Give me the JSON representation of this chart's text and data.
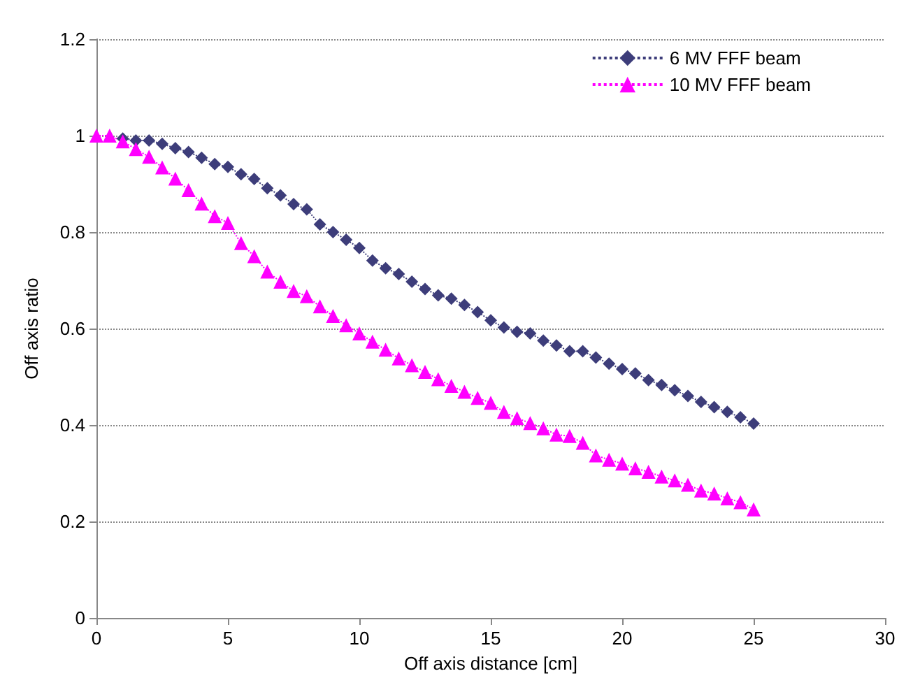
{
  "chart_data": {
    "type": "line",
    "xlabel": "Off axis distance [cm]",
    "ylabel": "Off axis ratio",
    "x": [
      0,
      0.5,
      1,
      1.5,
      2,
      2.5,
      3,
      3.5,
      4,
      4.5,
      5,
      5.5,
      6,
      6.5,
      7,
      7.5,
      8,
      8.5,
      9,
      9.5,
      10,
      10.5,
      11,
      11.5,
      12,
      12.5,
      13,
      13.5,
      14,
      14.5,
      15,
      15.5,
      16,
      16.5,
      17,
      17.5,
      18,
      18.5,
      19,
      19.5,
      20,
      20.5,
      21,
      21.5,
      22,
      22.5,
      23,
      23.5,
      24,
      24.5,
      25
    ],
    "series": [
      {
        "name": "6 MV FFF beam",
        "color": "#3d3d7a",
        "marker": "diamond",
        "values": [
          null,
          null,
          0.994,
          0.99,
          0.99,
          0.983,
          0.974,
          0.966,
          0.954,
          0.941,
          0.935,
          0.92,
          0.91,
          0.891,
          0.876,
          0.858,
          0.847,
          0.816,
          0.8,
          0.784,
          0.767,
          0.741,
          0.725,
          0.713,
          0.697,
          0.682,
          0.669,
          0.662,
          0.649,
          0.634,
          0.617,
          0.602,
          0.593,
          0.59,
          0.575,
          0.565,
          0.553,
          0.553,
          0.54,
          0.527,
          0.516,
          0.507,
          0.493,
          0.483,
          0.472,
          0.46,
          0.448,
          0.437,
          0.427,
          0.416,
          0.403
        ]
      },
      {
        "name": "10 MV FFF beam",
        "color": "#ff00ff",
        "marker": "triangle",
        "values": [
          1.0,
          1.0,
          0.988,
          0.972,
          0.956,
          0.934,
          0.911,
          0.887,
          0.859,
          0.833,
          0.819,
          0.777,
          0.75,
          0.718,
          0.697,
          0.678,
          0.667,
          0.646,
          0.626,
          0.607,
          0.59,
          0.573,
          0.556,
          0.538,
          0.524,
          0.51,
          0.495,
          0.481,
          0.469,
          0.456,
          0.446,
          0.427,
          0.414,
          0.404,
          0.393,
          0.38,
          0.377,
          0.363,
          0.337,
          0.328,
          0.32,
          0.31,
          0.303,
          0.293,
          0.285,
          0.276,
          0.264,
          0.258,
          0.248,
          0.24,
          0.225
        ]
      }
    ],
    "xlim": [
      0,
      30
    ],
    "xticks": [
      0,
      5,
      10,
      15,
      20,
      25,
      30
    ],
    "ylim": [
      0,
      1.2
    ],
    "yticks": [
      0,
      0.2,
      0.4,
      0.6,
      0.8,
      1,
      1.2
    ],
    "grid": "y",
    "legend": "top right",
    "line_style": "dotted"
  }
}
